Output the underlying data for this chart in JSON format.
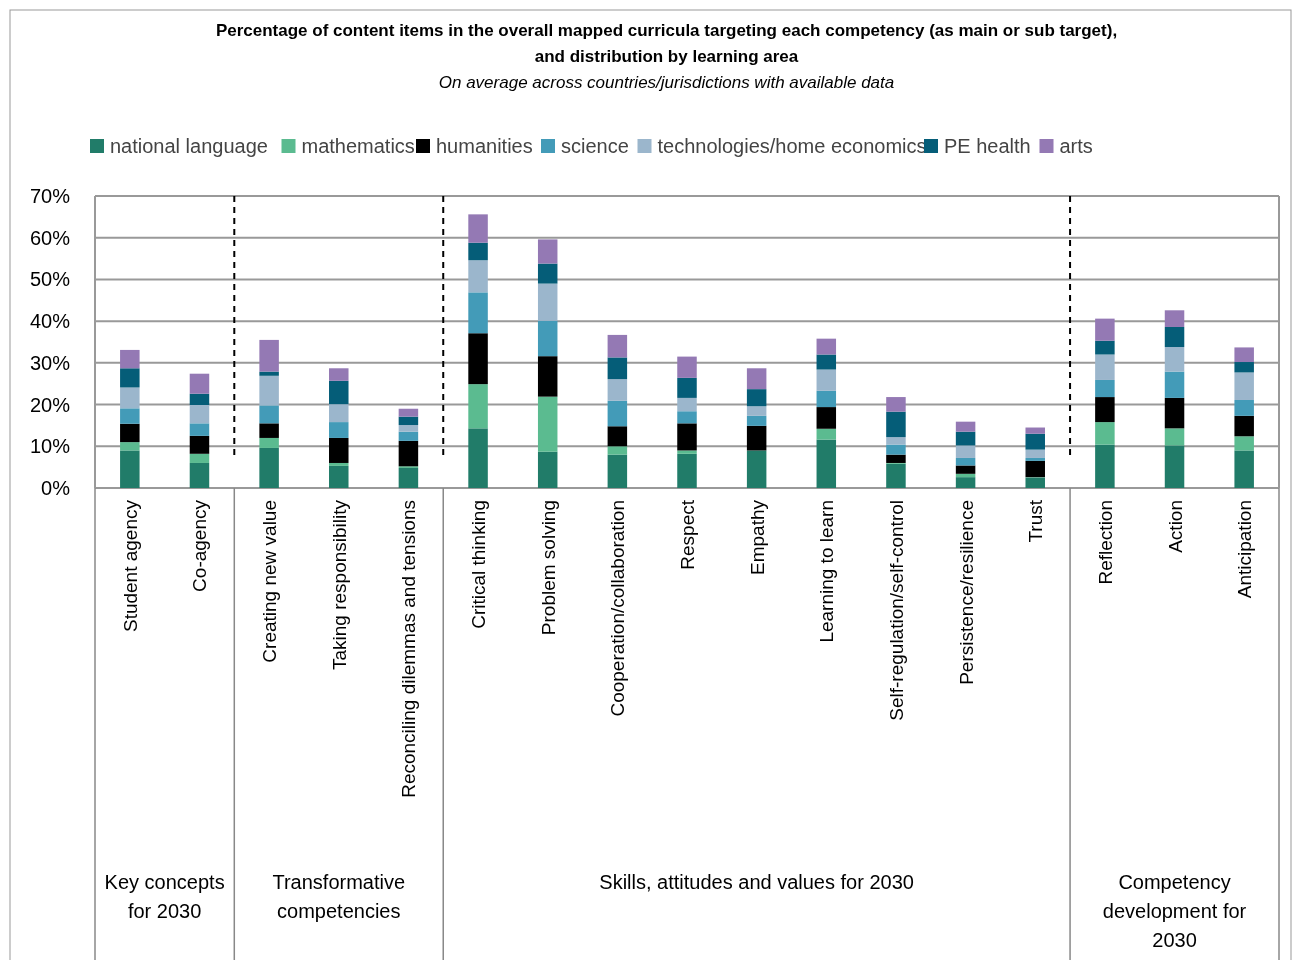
{
  "chart_data": {
    "type": "bar",
    "stacked": true,
    "title": "Percentage of content items in the overall mapped curricula targeting each competency (as main or sub target),\nand distribution by learning area",
    "subtitle": "On average across countries/jurisdictions with available data",
    "categories": [
      "Student agency",
      "Co-agency",
      "Creating new value",
      "Taking responsibility",
      "Reconciling dilemmas and tensions",
      "Critical thinking",
      "Problem solving",
      "Cooperation/collaboration",
      "Respect",
      "Empathy",
      "Learning to learn",
      "Self-regulation/self-control",
      "Persistence/resilience",
      "Trust",
      "Reflection",
      "Action",
      "Anticipation"
    ],
    "series": [
      {
        "name": "national language",
        "color": "#217c69",
        "values": [
          9.0,
          6.0,
          9.6,
          5.3,
          4.8,
          14.3,
          8.7,
          8.0,
          8.2,
          9.0,
          11.6,
          5.8,
          2.6,
          2.5,
          10.4,
          10.2,
          9.0
        ]
      },
      {
        "name": "mathematics",
        "color": "#5bbb90",
        "values": [
          2.0,
          2.2,
          2.4,
          0.7,
          0.4,
          10.6,
          13.2,
          2.0,
          0.8,
          null,
          2.6,
          0.2,
          0.8,
          0.1,
          5.4,
          4.1,
          3.4
        ]
      },
      {
        "name": "humanities",
        "color": "#000000",
        "values": [
          4.4,
          4.3,
          3.5,
          6.0,
          6.1,
          12.2,
          9.7,
          4.8,
          6.5,
          5.9,
          5.2,
          2.0,
          2.0,
          3.9,
          6.0,
          7.3,
          4.9
        ]
      },
      {
        "name": "science",
        "color": "#439bb8",
        "values": [
          3.7,
          3.0,
          4.3,
          3.8,
          2.2,
          9.8,
          8.5,
          6.1,
          2.9,
          2.4,
          3.9,
          2.4,
          1.8,
          0.7,
          4.1,
          6.3,
          3.8
        ]
      },
      {
        "name": "technologies/home economics",
        "color": "#9bb6cc",
        "values": [
          5.0,
          4.4,
          7.1,
          4.3,
          1.6,
          7.7,
          8.9,
          5.2,
          3.2,
          2.3,
          5.1,
          1.8,
          3.0,
          2.0,
          6.1,
          5.9,
          6.6
        ]
      },
      {
        "name": "PE health",
        "color": "#055d78",
        "values": [
          4.6,
          2.7,
          1.0,
          5.6,
          2.0,
          4.2,
          4.8,
          5.2,
          4.8,
          4.1,
          3.6,
          6.1,
          3.3,
          3.8,
          3.3,
          4.8,
          2.5
        ]
      },
      {
        "name": "arts",
        "color": "#9479b4",
        "values": [
          4.4,
          4.8,
          7.6,
          3.0,
          1.9,
          6.8,
          5.8,
          5.4,
          5.1,
          5.0,
          3.8,
          3.5,
          2.4,
          1.5,
          5.3,
          4.0,
          3.5
        ]
      }
    ],
    "ylim": [
      0,
      70
    ],
    "yticks": [
      {
        "value": 0,
        "label": "0%"
      },
      {
        "value": 10,
        "label": "10%"
      },
      {
        "value": 20,
        "label": "20%"
      },
      {
        "value": 30,
        "label": "30%"
      },
      {
        "value": 40,
        "label": "40%"
      },
      {
        "value": 50,
        "label": "50%"
      },
      {
        "value": 60,
        "label": "60%"
      },
      {
        "value": 70,
        "label": "70%"
      }
    ],
    "grid": "y",
    "legend": "top",
    "annotations": [
      "Key concepts for 2030",
      "Transformative competencies",
      "Skills, attitudes and values for 2030",
      "Competency development for 2030"
    ]
  }
}
